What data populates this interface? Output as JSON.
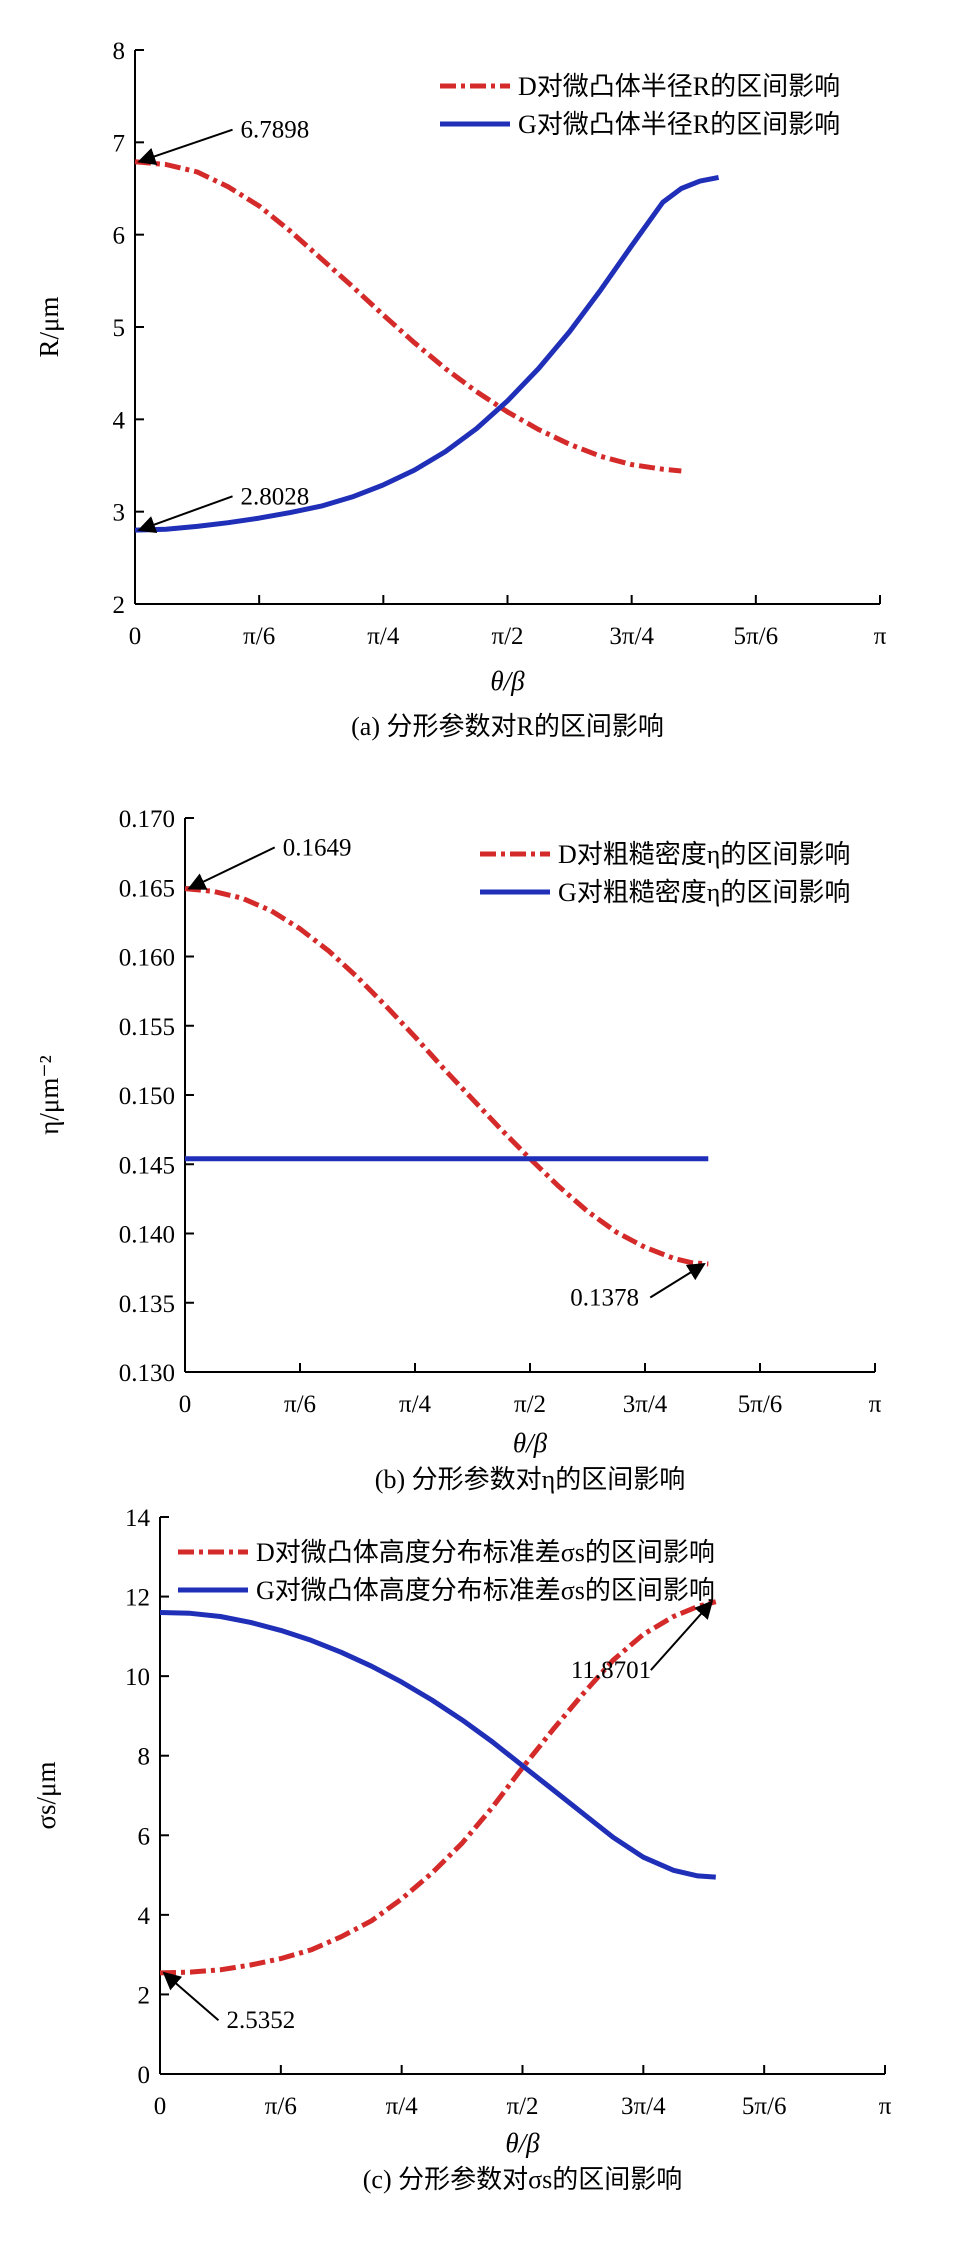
{
  "chart_data": [
    {
      "id": "a",
      "type": "line",
      "categories": [
        "0",
        "π/6",
        "π/4",
        "π/2",
        "3π/4",
        "5π/6",
        "π"
      ],
      "ylim": [
        2,
        8
      ],
      "yticks": [
        "2",
        "3",
        "4",
        "5",
        "6",
        "7",
        "8"
      ],
      "ylabel": "R/μm",
      "xlabel": "θ/β",
      "caption": "(a) 分形参数对R的区间影响",
      "legend_position": "top-right",
      "series": [
        {
          "name": "D对微凸体半径R的区间影响",
          "color": "#d42a2a",
          "dash": "dash-dot",
          "points": [
            [
              0,
              6.79
            ],
            [
              0.25,
              6.76
            ],
            [
              0.5,
              6.68
            ],
            [
              0.75,
              6.52
            ],
            [
              1,
              6.31
            ],
            [
              1.25,
              6.04
            ],
            [
              1.5,
              5.74
            ],
            [
              1.75,
              5.44
            ],
            [
              2,
              5.13
            ],
            [
              2.25,
              4.83
            ],
            [
              2.5,
              4.55
            ],
            [
              2.75,
              4.3
            ],
            [
              3,
              4.08
            ],
            [
              3.25,
              3.89
            ],
            [
              3.5,
              3.73
            ],
            [
              3.75,
              3.6
            ],
            [
              4,
              3.51
            ],
            [
              4.25,
              3.46
            ],
            [
              4.4,
              3.44
            ]
          ]
        },
        {
          "name": "G对微凸体半径R的区间影响",
          "color": "#1f2fb8",
          "dash": "solid",
          "points": [
            [
              0,
              2.8
            ],
            [
              0.25,
              2.81
            ],
            [
              0.5,
              2.84
            ],
            [
              0.75,
              2.88
            ],
            [
              1,
              2.93
            ],
            [
              1.25,
              2.99
            ],
            [
              1.5,
              3.06
            ],
            [
              1.75,
              3.16
            ],
            [
              2,
              3.29
            ],
            [
              2.25,
              3.45
            ],
            [
              2.5,
              3.65
            ],
            [
              2.75,
              3.9
            ],
            [
              3,
              4.2
            ],
            [
              3.25,
              4.55
            ],
            [
              3.5,
              4.95
            ],
            [
              3.75,
              5.4
            ],
            [
              4,
              5.88
            ],
            [
              4.25,
              6.35
            ],
            [
              4.4,
              6.5
            ],
            [
              4.55,
              6.58
            ],
            [
              4.7,
              6.62
            ]
          ]
        }
      ],
      "annotations": [
        {
          "text": "6.7898",
          "x": 0,
          "y": 6.79,
          "tx": 0.85,
          "ty": 7.05
        },
        {
          "text": "2.8028",
          "x": 0,
          "y": 2.8,
          "tx": 0.85,
          "ty": 3.08
        }
      ]
    },
    {
      "id": "b",
      "type": "line",
      "categories": [
        "0",
        "π/6",
        "π/4",
        "π/2",
        "3π/4",
        "5π/6",
        "π"
      ],
      "ylim": [
        0.13,
        0.17
      ],
      "yticks": [
        "0.130",
        "0.135",
        "0.140",
        "0.145",
        "0.150",
        "0.155",
        "0.160",
        "0.165",
        "0.170"
      ],
      "ylabel": "η/μm⁻²",
      "xlabel": "θ/β",
      "caption": "(b) 分形参数对η的区间影响",
      "legend_position": "top-right",
      "series": [
        {
          "name": "D对粗糙密度η的区间影响",
          "color": "#d42a2a",
          "dash": "dash-dot",
          "points": [
            [
              0,
              0.1649
            ],
            [
              0.25,
              0.1647
            ],
            [
              0.5,
              0.1642
            ],
            [
              0.75,
              0.1633
            ],
            [
              1,
              0.162
            ],
            [
              1.25,
              0.1604
            ],
            [
              1.5,
              0.1585
            ],
            [
              1.75,
              0.1564
            ],
            [
              2,
              0.1542
            ],
            [
              2.25,
              0.1519
            ],
            [
              2.5,
              0.1497
            ],
            [
              2.75,
              0.1475
            ],
            [
              3,
              0.1454
            ],
            [
              3.25,
              0.1434
            ],
            [
              3.5,
              0.1416
            ],
            [
              3.75,
              0.1401
            ],
            [
              4,
              0.139
            ],
            [
              4.25,
              0.1382
            ],
            [
              4.4,
              0.1379
            ],
            [
              4.55,
              0.1378
            ]
          ]
        },
        {
          "name": "G对粗糙密度η的区间影响",
          "color": "#1f2fb8",
          "dash": "solid",
          "points": [
            [
              0,
              0.1454
            ],
            [
              4.55,
              0.1454
            ]
          ]
        }
      ],
      "annotations": [
        {
          "text": "0.1649",
          "x": 0,
          "y": 0.1649,
          "tx": 0.85,
          "ty": 0.1673
        },
        {
          "text": "0.1378",
          "x": 4.55,
          "y": 0.1378,
          "tx": 3.35,
          "ty": 0.1348
        }
      ]
    },
    {
      "id": "c",
      "type": "line",
      "categories": [
        "0",
        "π/6",
        "π/4",
        "π/2",
        "3π/4",
        "5π/6",
        "π"
      ],
      "ylim": [
        0,
        14
      ],
      "yticks": [
        "0",
        "2",
        "4",
        "6",
        "8",
        "10",
        "12",
        "14"
      ],
      "ylabel": "σs/μm",
      "xlabel": "θ/β",
      "caption": "(c) 分形参数对σs的区间影响",
      "legend_position": "top",
      "series": [
        {
          "name": "D对微凸体高度分布标准差σs的区间影响",
          "color": "#d42a2a",
          "dash": "dash-dot",
          "points": [
            [
              0,
              2.54
            ],
            [
              0.25,
              2.56
            ],
            [
              0.5,
              2.62
            ],
            [
              0.75,
              2.74
            ],
            [
              1,
              2.9
            ],
            [
              1.25,
              3.12
            ],
            [
              1.5,
              3.45
            ],
            [
              1.75,
              3.85
            ],
            [
              2,
              4.4
            ],
            [
              2.25,
              5.05
            ],
            [
              2.5,
              5.8
            ],
            [
              2.75,
              6.7
            ],
            [
              3,
              7.7
            ],
            [
              3.25,
              8.65
            ],
            [
              3.5,
              9.55
            ],
            [
              3.75,
              10.4
            ],
            [
              4,
              11.05
            ],
            [
              4.25,
              11.5
            ],
            [
              4.45,
              11.75
            ],
            [
              4.6,
              11.87
            ]
          ]
        },
        {
          "name": "G对微凸体高度分布标准差σs的区间影响",
          "color": "#1f2fb8",
          "dash": "solid",
          "points": [
            [
              0,
              11.6
            ],
            [
              0.25,
              11.58
            ],
            [
              0.5,
              11.5
            ],
            [
              0.75,
              11.35
            ],
            [
              1,
              11.15
            ],
            [
              1.25,
              10.9
            ],
            [
              1.5,
              10.6
            ],
            [
              1.75,
              10.25
            ],
            [
              2,
              9.85
            ],
            [
              2.25,
              9.4
            ],
            [
              2.5,
              8.9
            ],
            [
              2.75,
              8.35
            ],
            [
              3,
              7.75
            ],
            [
              3.25,
              7.15
            ],
            [
              3.5,
              6.55
            ],
            [
              3.75,
              5.95
            ],
            [
              4,
              5.45
            ],
            [
              4.25,
              5.12
            ],
            [
              4.45,
              4.98
            ],
            [
              4.6,
              4.95
            ]
          ]
        }
      ],
      "annotations": [
        {
          "text": "11.8701",
          "x": 4.6,
          "y": 11.87,
          "tx": 3.4,
          "ty": 9.95
        },
        {
          "text": "2.5352",
          "x": 0,
          "y": 2.54,
          "tx": 0.55,
          "ty": 1.15
        }
      ]
    }
  ]
}
